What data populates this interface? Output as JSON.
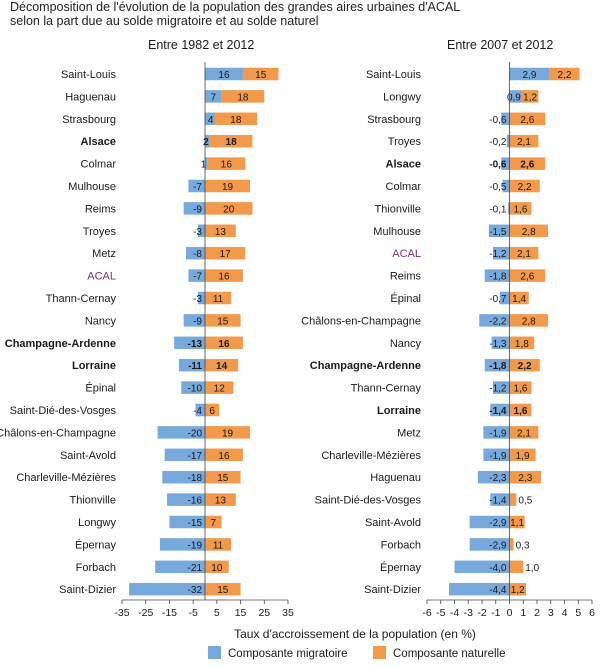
{
  "title": {
    "line1": "Décomposition de l'évolution de la population des grandes aires urbaines d'ACAL",
    "line2": "selon la part due au solde migratoire et au solde naturel"
  },
  "colors": {
    "migratory": "#77a9dd",
    "natural": "#f2994a",
    "highlight": "#7a2e7c",
    "text": "#1a1a1a",
    "axis": "#444444"
  },
  "chart_data": [
    {
      "type": "bar",
      "orientation": "horizontal",
      "stacked": "diverging",
      "subtitle": "Entre 1982 et 2012",
      "categories": [
        "Saint-Louis",
        "Haguenau",
        "Strasbourg",
        "Alsace",
        "Colmar",
        "Mulhouse",
        "Reims",
        "Troyes",
        "Metz",
        "ACAL",
        "Thann-Cernay",
        "Nancy",
        "Champagne-Ardenne",
        "Lorraine",
        "Épinal",
        "Saint-Dié-des-Vosges",
        "Châlons-en-Champagne",
        "Saint-Avold",
        "Charleville-Mézières",
        "Thionville",
        "Longwy",
        "Épernay",
        "Forbach",
        "Saint-Dizier"
      ],
      "bold_categories": [
        "Alsace",
        "Champagne-Ardenne",
        "Lorraine"
      ],
      "highlight_categories": [
        "ACAL"
      ],
      "series": [
        {
          "name": "Composante migratoire",
          "values": [
            16,
            7,
            4,
            2,
            1,
            -7,
            -9,
            -3,
            -8,
            -7,
            -3,
            -9,
            -13,
            -11,
            -10,
            -4,
            -20,
            -17,
            -18,
            -16,
            -15,
            -19,
            -21,
            -32
          ],
          "labels": [
            "16",
            "7",
            "4",
            "2",
            "1",
            "-7",
            "-9",
            "-3",
            "-8",
            "-7",
            "-3",
            "-9",
            "-13",
            "-11",
            "-10",
            "-4",
            "-20",
            "-17",
            "-18",
            "-16",
            "-15",
            "-19",
            "-21",
            "-32"
          ]
        },
        {
          "name": "Composante naturelle",
          "values": [
            15,
            18,
            18,
            18,
            16,
            19,
            20,
            13,
            17,
            16,
            11,
            15,
            16,
            14,
            12,
            6,
            19,
            16,
            15,
            13,
            7,
            11,
            10,
            15
          ],
          "labels": [
            "15",
            "18",
            "18",
            "18",
            "16",
            "19",
            "20",
            "13",
            "17",
            "16",
            "11",
            "15",
            "16",
            "14",
            "12",
            "6",
            "19",
            "16",
            "15",
            "13",
            "7",
            "11",
            "10",
            "15"
          ]
        }
      ],
      "xlim": [
        -35,
        35
      ],
      "xticks": [
        -35,
        -25,
        -15,
        -5,
        5,
        15,
        25,
        35
      ],
      "xtick_labels": [
        "-35",
        "-25",
        "-15",
        "-5",
        "5",
        "15",
        "25",
        "35"
      ]
    },
    {
      "type": "bar",
      "orientation": "horizontal",
      "stacked": "diverging",
      "subtitle": "Entre 2007 et 2012",
      "categories": [
        "Saint-Louis",
        "Longwy",
        "Strasbourg",
        "Troyes",
        "Alsace",
        "Colmar",
        "Thionville",
        "Mulhouse",
        "ACAL",
        "Reims",
        "Épinal",
        "Châlons-en-Champagne",
        "Nancy",
        "Champagne-Ardenne",
        "Thann-Cernay",
        "Lorraine",
        "Metz",
        "Charleville-Mézières",
        "Haguenau",
        "Saint-Dié-des-Vosges",
        "Saint-Avold",
        "Forbach",
        "Épernay",
        "Saint-Dizier"
      ],
      "bold_categories": [
        "Alsace",
        "Champagne-Ardenne",
        "Lorraine"
      ],
      "highlight_categories": [
        "ACAL"
      ],
      "series": [
        {
          "name": "Composante migratoire",
          "values": [
            2.9,
            0.9,
            -0.6,
            -0.2,
            -0.6,
            -0.5,
            -0.1,
            -1.5,
            -1.2,
            -1.8,
            -0.7,
            -2.2,
            -1.3,
            -1.8,
            -1.2,
            -1.4,
            -1.9,
            -1.9,
            -2.3,
            -1.4,
            -2.9,
            -2.9,
            -4.0,
            -4.4
          ],
          "labels": [
            "2,9",
            "0,9",
            "-0,6",
            "-0,2",
            "-0,6",
            "-0,5",
            "-0,1",
            "-1,5",
            "-1,2",
            "-1,8",
            "-0,7",
            "-2,2",
            "-1,3",
            "-1,8",
            "-1,2",
            "-1,4",
            "-1,9",
            "-1,9",
            "-2,3",
            "-1,4",
            "-2,9",
            "-2,9",
            "-4,0",
            "-4,4"
          ]
        },
        {
          "name": "Composante naturelle",
          "values": [
            2.2,
            1.2,
            2.6,
            2.1,
            2.6,
            2.2,
            1.6,
            2.8,
            2.1,
            2.6,
            1.4,
            2.8,
            1.8,
            2.2,
            1.6,
            1.6,
            2.1,
            1.9,
            2.3,
            0.5,
            1.1,
            0.3,
            1.0,
            1.2
          ],
          "labels": [
            "2,2",
            "1,2",
            "2,6",
            "2,1",
            "2,6",
            "2,2",
            "1,6",
            "2,8",
            "2,1",
            "2,6",
            "1,4",
            "2,8",
            "1,8",
            "2,2",
            "1,6",
            "1,6",
            "2,1",
            "1,9",
            "2,3",
            "0,5",
            "1,1",
            "0,3",
            "1,0",
            "1,2"
          ]
        }
      ],
      "xlim": [
        -6,
        6
      ],
      "xticks": [
        -6,
        -5,
        -4,
        -3,
        -2,
        -1,
        0,
        1,
        2,
        3,
        4,
        5,
        6
      ],
      "xtick_labels": [
        "-6",
        "-5",
        "-4",
        "-3",
        "-2",
        "-1",
        "0",
        "1",
        "2",
        "3",
        "4",
        "5",
        "6"
      ]
    }
  ],
  "xlabel": "Taux d'accroissement de la population (en %)",
  "legend": [
    {
      "name": "Composante migratoire",
      "color": "#77a9dd"
    },
    {
      "name": "Composante naturelle",
      "color": "#f2994a"
    }
  ]
}
